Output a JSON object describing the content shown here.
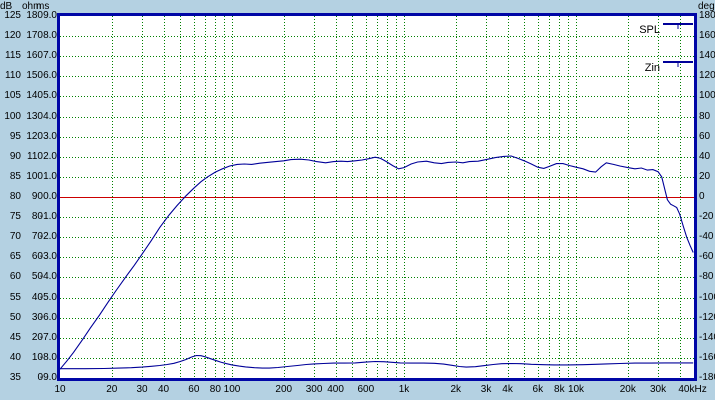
{
  "colors": {
    "window_bg": "#b4d1e2",
    "plot_bg": "#ffffff",
    "plot_border": "#0006a6",
    "grid": "#008000",
    "curve": "#000099",
    "reference_line": "#cc0000",
    "text": "#000000"
  },
  "chart_data": {
    "type": "line",
    "title": "",
    "x_axis": {
      "scale": "log",
      "min_hz": 10,
      "max_hz": 48000,
      "unit": "Hz",
      "tick_labels": [
        {
          "text": "10",
          "f": 10
        },
        {
          "text": "20",
          "f": 20
        },
        {
          "text": "30",
          "f": 30
        },
        {
          "text": "40",
          "f": 40
        },
        {
          "text": "60",
          "f": 60
        },
        {
          "text": "80",
          "f": 80
        },
        {
          "text": "100",
          "f": 100
        },
        {
          "text": "200",
          "f": 200
        },
        {
          "text": "300",
          "f": 300
        },
        {
          "text": "400",
          "f": 400
        },
        {
          "text": "600",
          "f": 600
        },
        {
          "text": "1k",
          "f": 1000
        },
        {
          "text": "2k",
          "f": 2000
        },
        {
          "text": "3k",
          "f": 3000
        },
        {
          "text": "4k",
          "f": 4000
        },
        {
          "text": "6k",
          "f": 6000
        },
        {
          "text": "8k",
          "f": 8000
        },
        {
          "text": "10k",
          "f": 10000
        },
        {
          "text": "20k",
          "f": 20000
        },
        {
          "text": "30k",
          "f": 30000
        },
        {
          "text": "40kHz",
          "f": 40000,
          "dx": 13
        }
      ]
    },
    "left_axis_columns": [
      {
        "header": "dB",
        "min": 35,
        "max": 125,
        "step": 5,
        "ticks": [
          "125",
          "120",
          "115",
          "110",
          "105",
          "100",
          "95",
          "90",
          "85",
          "80",
          "75",
          "70",
          "65",
          "60",
          "55",
          "50",
          "45",
          "40",
          "35"
        ]
      },
      {
        "header": "ohm",
        "min": 0,
        "max": 180,
        "step": 10,
        "ticks": [
          "180",
          "170",
          "160",
          "150",
          "140",
          "130",
          "120",
          "110",
          "100",
          "90",
          "80",
          "70",
          "60",
          "50",
          "40",
          "30",
          "20",
          "10",
          "0"
        ]
      },
      {
        "header": "ms",
        "min": -9,
        "max": 9,
        "step": 1,
        "ticks": [
          "9.0",
          "8.0",
          "7.0",
          "6.0",
          "5.0",
          "4.0",
          "3.0",
          "2.0",
          "1.0",
          "0.0",
          "-1.0",
          "-2.0",
          "-3.0",
          "-4.0",
          "-5.0",
          "-6.0",
          "-7.0",
          "-8.0",
          "-9.0"
        ]
      }
    ],
    "right_axis": {
      "header": "deg",
      "min": -180,
      "max": 180,
      "step": 20,
      "ticks": [
        "180",
        "160",
        "140",
        "120",
        "100",
        "80",
        "60",
        "40",
        "20",
        "0",
        "-20",
        "-40",
        "-60",
        "-80",
        "-100",
        "-120",
        "-140",
        "-160",
        "-180"
      ]
    },
    "reference_line": {
      "axis": "dB",
      "value": 80,
      "color": "#cc0000"
    },
    "grid": {
      "color": "#008000",
      "style": "dotted",
      "x_lines": "1-2-3...9 per decade up to 40k",
      "y_lines": "every 5 dB row"
    },
    "legend": [
      "SPL",
      "Zin"
    ],
    "series": [
      {
        "name": "SPL",
        "axis": "dB",
        "color": "#000099",
        "points": [
          [
            10,
            37.2
          ],
          [
            11,
            39.3
          ],
          [
            12,
            41.4
          ],
          [
            13.5,
            44.5
          ],
          [
            15,
            47.4
          ],
          [
            17,
            50.7
          ],
          [
            19,
            53.8
          ],
          [
            21,
            56.5
          ],
          [
            24,
            60.0
          ],
          [
            27,
            63.0
          ],
          [
            30,
            65.8
          ],
          [
            34,
            69.2
          ],
          [
            38,
            72.4
          ],
          [
            43,
            75.5
          ],
          [
            48,
            77.9
          ],
          [
            54,
            80.3
          ],
          [
            60,
            82.2
          ],
          [
            66,
            83.8
          ],
          [
            72,
            85.0
          ],
          [
            80,
            86.2
          ],
          [
            88,
            87.0
          ],
          [
            97,
            87.7
          ],
          [
            107,
            88.1
          ],
          [
            118,
            88.2
          ],
          [
            130,
            88.1
          ],
          [
            145,
            88.4
          ],
          [
            160,
            88.6
          ],
          [
            180,
            88.8
          ],
          [
            200,
            89.0
          ],
          [
            220,
            89.3
          ],
          [
            250,
            89.4
          ],
          [
            280,
            89.2
          ],
          [
            310,
            88.8
          ],
          [
            350,
            88.5
          ],
          [
            390,
            88.8
          ],
          [
            430,
            88.9
          ],
          [
            470,
            88.8
          ],
          [
            520,
            89.0
          ],
          [
            570,
            89.2
          ],
          [
            620,
            89.5
          ],
          [
            680,
            89.9
          ],
          [
            730,
            89.6
          ],
          [
            790,
            88.8
          ],
          [
            860,
            87.8
          ],
          [
            930,
            87.0
          ],
          [
            1000,
            87.3
          ],
          [
            1100,
            88.2
          ],
          [
            1200,
            88.7
          ],
          [
            1350,
            88.9
          ],
          [
            1500,
            88.5
          ],
          [
            1650,
            88.3
          ],
          [
            1800,
            88.6
          ],
          [
            2000,
            88.7
          ],
          [
            2200,
            88.5
          ],
          [
            2400,
            88.8
          ],
          [
            2700,
            88.9
          ],
          [
            3000,
            89.3
          ],
          [
            3400,
            89.8
          ],
          [
            3800,
            90.1
          ],
          [
            4200,
            90.2
          ],
          [
            4600,
            89.6
          ],
          [
            5000,
            89.0
          ],
          [
            5500,
            88.2
          ],
          [
            6000,
            87.4
          ],
          [
            6500,
            87.1
          ],
          [
            7000,
            87.6
          ],
          [
            7700,
            88.3
          ],
          [
            8400,
            88.3
          ],
          [
            9200,
            87.8
          ],
          [
            10000,
            87.4
          ],
          [
            11000,
            87.0
          ],
          [
            12000,
            86.4
          ],
          [
            13000,
            86.2
          ],
          [
            14000,
            87.5
          ],
          [
            15000,
            88.5
          ],
          [
            16500,
            88.1
          ],
          [
            18000,
            87.7
          ],
          [
            20000,
            87.3
          ],
          [
            22000,
            87.0
          ],
          [
            24000,
            87.2
          ],
          [
            26000,
            86.7
          ],
          [
            28000,
            86.8
          ],
          [
            30000,
            86.3
          ],
          [
            31500,
            85.0
          ],
          [
            33000,
            81.5
          ],
          [
            34000,
            79.3
          ],
          [
            35500,
            78.2
          ],
          [
            37000,
            77.8
          ],
          [
            38500,
            77.4
          ],
          [
            40000,
            75.8
          ],
          [
            42000,
            72.8
          ],
          [
            44000,
            70.0
          ],
          [
            46000,
            68.0
          ],
          [
            48000,
            66.2
          ]
        ]
      },
      {
        "name": "Zin",
        "axis": "ohm",
        "color": "#000099",
        "points": [
          [
            10,
            4.6
          ],
          [
            14,
            4.6
          ],
          [
            18,
            4.7
          ],
          [
            22,
            4.9
          ],
          [
            26,
            5.1
          ],
          [
            30,
            5.4
          ],
          [
            34,
            5.8
          ],
          [
            38,
            6.2
          ],
          [
            42,
            6.7
          ],
          [
            46,
            7.3
          ],
          [
            50,
            8.2
          ],
          [
            54,
            9.2
          ],
          [
            58,
            10.4
          ],
          [
            62,
            11.2
          ],
          [
            66,
            11.1
          ],
          [
            70,
            10.5
          ],
          [
            75,
            9.6
          ],
          [
            80,
            8.8
          ],
          [
            86,
            7.9
          ],
          [
            93,
            7.1
          ],
          [
            100,
            6.5
          ],
          [
            110,
            5.9
          ],
          [
            120,
            5.5
          ],
          [
            135,
            5.1
          ],
          [
            150,
            4.9
          ],
          [
            165,
            4.9
          ],
          [
            185,
            5.2
          ],
          [
            210,
            5.7
          ],
          [
            240,
            6.2
          ],
          [
            270,
            6.7
          ],
          [
            300,
            7.0
          ],
          [
            340,
            7.2
          ],
          [
            390,
            7.4
          ],
          [
            450,
            7.4
          ],
          [
            520,
            7.5
          ],
          [
            600,
            7.9
          ],
          [
            680,
            8.2
          ],
          [
            760,
            8.1
          ],
          [
            850,
            7.8
          ],
          [
            950,
            7.5
          ],
          [
            1100,
            7.4
          ],
          [
            1300,
            7.4
          ],
          [
            1500,
            7.3
          ],
          [
            1700,
            6.9
          ],
          [
            1900,
            6.3
          ],
          [
            2100,
            5.7
          ],
          [
            2300,
            5.4
          ],
          [
            2600,
            5.6
          ],
          [
            2900,
            6.1
          ],
          [
            3300,
            6.7
          ],
          [
            3700,
            7.1
          ],
          [
            4200,
            7.2
          ],
          [
            4800,
            7.1
          ],
          [
            5500,
            6.8
          ],
          [
            6500,
            6.6
          ],
          [
            7500,
            6.5
          ],
          [
            9000,
            6.5
          ],
          [
            11000,
            6.6
          ],
          [
            13000,
            6.8
          ],
          [
            15000,
            7.0
          ],
          [
            18000,
            7.2
          ],
          [
            22000,
            7.4
          ],
          [
            27000,
            7.4
          ],
          [
            33000,
            7.5
          ],
          [
            40000,
            7.5
          ],
          [
            48000,
            7.5
          ]
        ]
      }
    ]
  }
}
